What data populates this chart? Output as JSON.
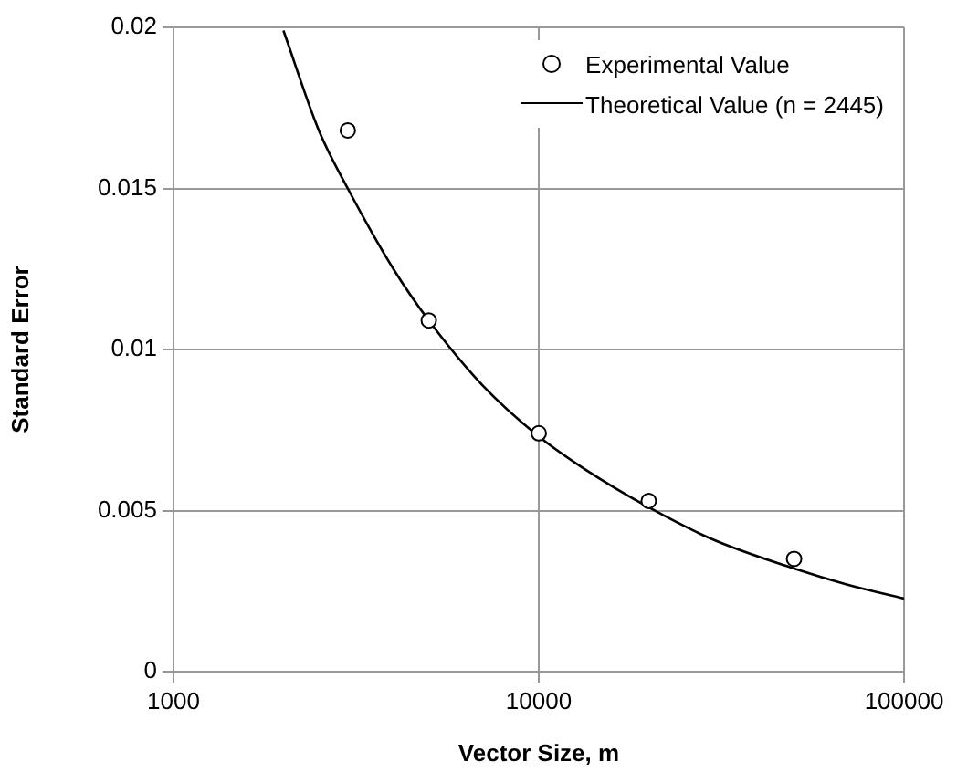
{
  "chart_data": {
    "type": "scatter",
    "xlabel": "Vector Size, m",
    "ylabel": "Standard Error",
    "log": "x",
    "xlim": [
      1000,
      100000
    ],
    "xticks": [
      1000,
      10000,
      100000
    ],
    "ylim": [
      0,
      0.02
    ],
    "yticks": [
      0,
      0.005,
      0.01,
      0.015,
      0.02
    ],
    "grid": true,
    "legend": "top right",
    "series": [
      {
        "name": "Experimental Value",
        "type": "scatter",
        "marker": "circle",
        "color": "#000000",
        "x": [
          3000,
          5000,
          10000,
          20000,
          50000
        ],
        "values": [
          0.0168,
          0.0109,
          0.0074,
          0.0053,
          0.0035
        ]
      },
      {
        "name": "Theoretical Value (n = 2445)",
        "type": "line",
        "marker": "none",
        "line_style": "solid",
        "color": "#000000",
        "x": [
          2000,
          2500,
          3000,
          4000,
          5000,
          7000,
          10000,
          13300,
          20000,
          30000,
          50000,
          70000,
          100000
        ],
        "values": [
          0.0199,
          0.0168,
          0.015,
          0.0125,
          0.0109,
          0.0089,
          0.0073,
          0.0063,
          0.0051,
          0.0041,
          0.0032,
          0.0027,
          0.00227
        ]
      }
    ]
  }
}
